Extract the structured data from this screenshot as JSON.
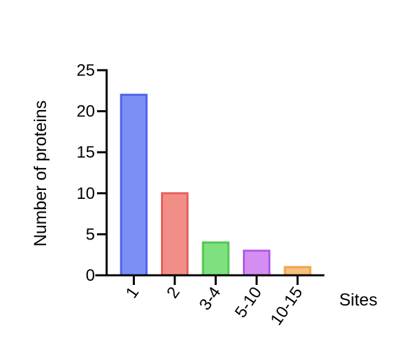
{
  "chart_data": {
    "type": "bar",
    "title": "",
    "xlabel": "Sites",
    "ylabel": "Number of proteins",
    "categories": [
      "1",
      "2",
      "3-4",
      "5-10",
      "10-15"
    ],
    "values": [
      22,
      10,
      4,
      3,
      1
    ],
    "ylim": [
      0,
      25
    ],
    "yticks": [
      "0",
      "5",
      "10",
      "15",
      "20",
      "25"
    ],
    "grid": false,
    "legend": "none",
    "colors": {
      "fills": [
        "#7b8ff5",
        "#f28e88",
        "#7fe07f",
        "#d48ef2",
        "#f7c07e"
      ],
      "strokes": [
        "#4a63ea",
        "#e8605a",
        "#4fc94f",
        "#b45be6",
        "#f2a444"
      ],
      "axis": "#000000"
    }
  }
}
